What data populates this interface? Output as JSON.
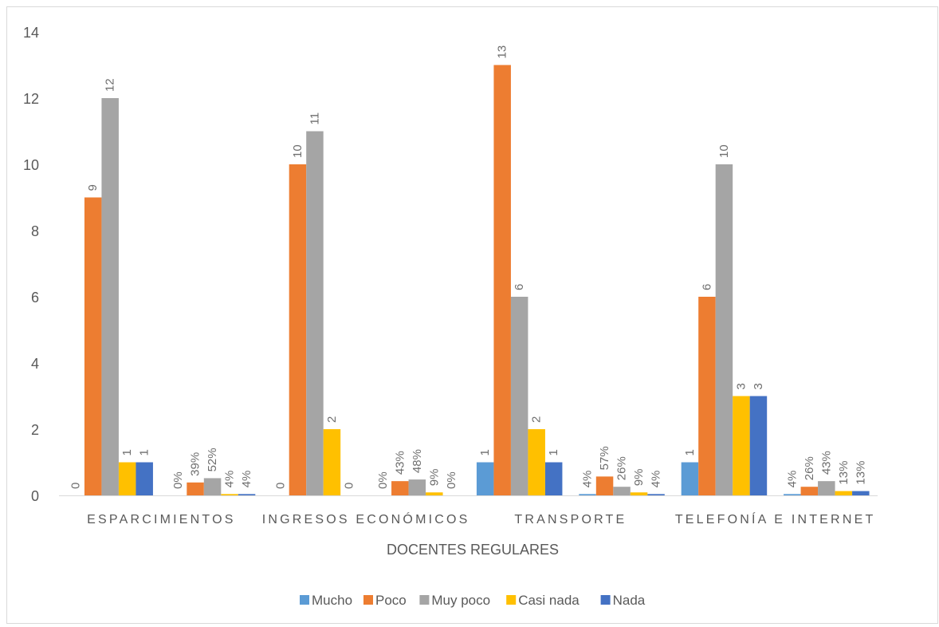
{
  "chart_data": {
    "type": "bar",
    "xlabel": "DOCENTES REGULARES",
    "ylabel": "",
    "ylim": [
      0,
      14
    ],
    "yticks": [
      0,
      2,
      4,
      6,
      8,
      10,
      12,
      14
    ],
    "grid": false,
    "legend_position": "bottom",
    "groups": [
      {
        "label": "ESPARCIMIENTOS",
        "values": [
          0,
          9,
          12,
          1,
          1
        ],
        "labels": [
          "0",
          "9",
          "12",
          "1",
          "1"
        ]
      },
      {
        "label": "",
        "values": [
          0,
          0.39,
          0.52,
          0.04,
          0.04
        ],
        "labels": [
          "0%",
          "39%",
          "52%",
          "4%",
          "4%"
        ]
      },
      {
        "label": "INGRESOS ECONÓMICOS",
        "values": [
          0,
          10,
          11,
          2,
          0
        ],
        "labels": [
          "0",
          "10",
          "11",
          "2",
          "0"
        ]
      },
      {
        "label": "",
        "values": [
          0,
          0.43,
          0.48,
          0.09,
          0
        ],
        "labels": [
          "0%",
          "43%",
          "48%",
          "9%",
          "0%"
        ]
      },
      {
        "label": "TRANSPORTE",
        "values": [
          1,
          13,
          6,
          2,
          1
        ],
        "labels": [
          "1",
          "13",
          "6",
          "2",
          "1"
        ]
      },
      {
        "label": "",
        "values": [
          0.04,
          0.57,
          0.26,
          0.09,
          0.04
        ],
        "labels": [
          "4%",
          "57%",
          "26%",
          "9%",
          "4%"
        ]
      },
      {
        "label": "TELEFONÍA E INTERNET",
        "values": [
          1,
          6,
          10,
          3,
          3
        ],
        "labels": [
          "1",
          "6",
          "10",
          "3",
          "3"
        ]
      },
      {
        "label": "",
        "values": [
          0.04,
          0.26,
          0.43,
          0.13,
          0.13
        ],
        "labels": [
          "4%",
          "26%",
          "43%",
          "13%",
          "13%"
        ]
      }
    ],
    "series": [
      {
        "name": "Mucho",
        "color": "#5b9bd5"
      },
      {
        "name": "Poco",
        "color": "#ed7d31"
      },
      {
        "name": "Muy poco",
        "color": "#a5a5a5"
      },
      {
        "name": "Casi nada",
        "color": "#ffc000"
      },
      {
        "name": "Nada",
        "color": "#4472c4"
      }
    ]
  }
}
